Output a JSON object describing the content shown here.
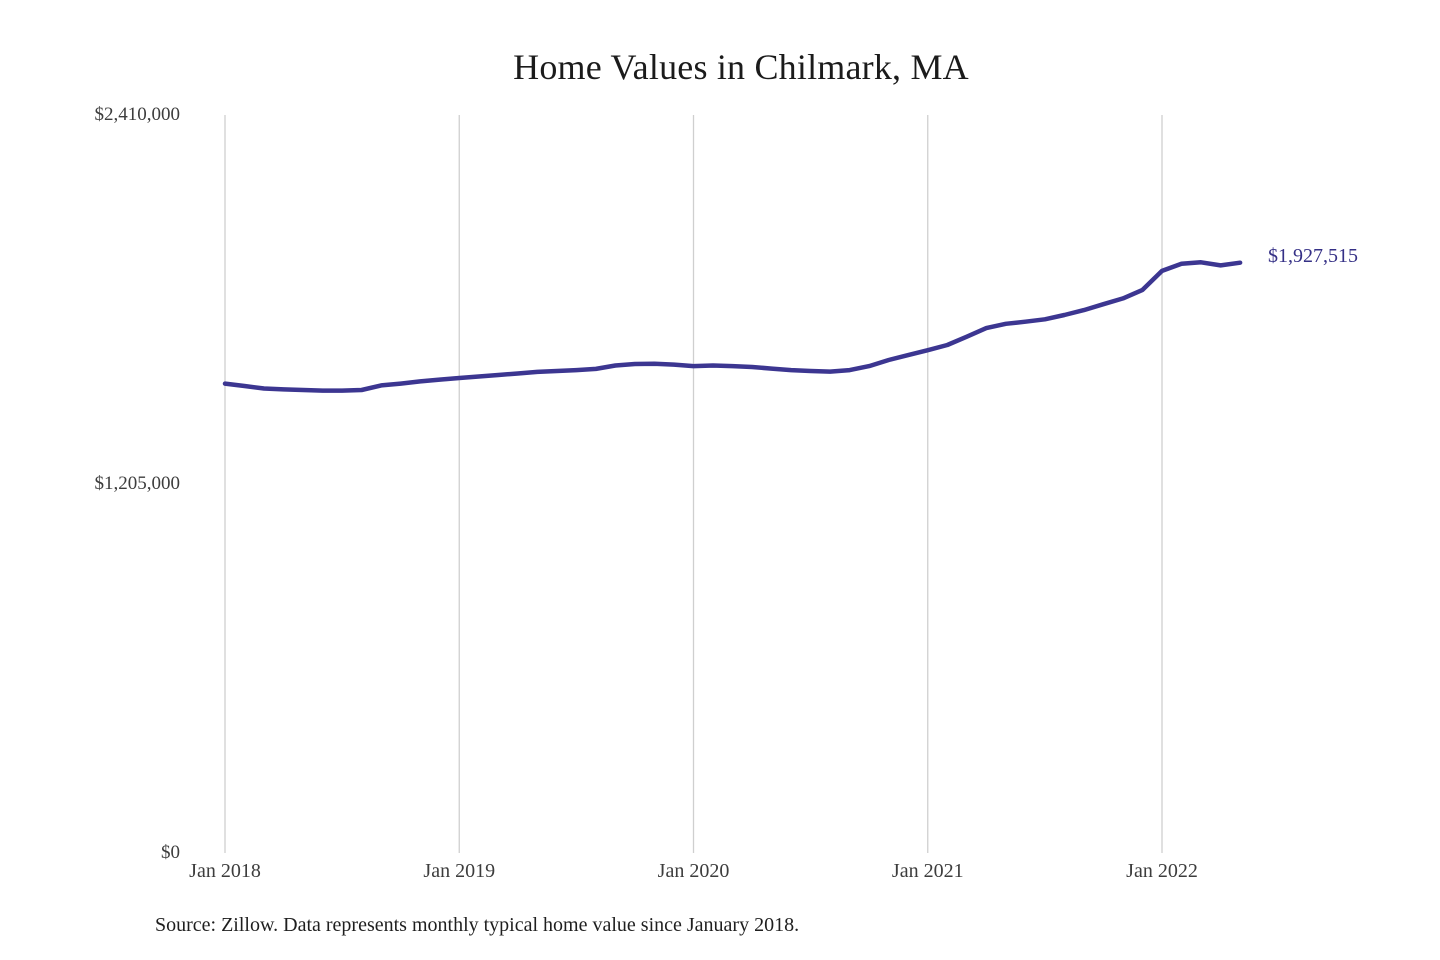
{
  "page": {
    "background_color": "#ffffff"
  },
  "chart_data": {
    "type": "line",
    "title": "Home Values in Chilmark, MA",
    "xlabel": "",
    "ylabel": "",
    "legend": "none",
    "grid": "vertical-only",
    "grid_color": "#cfcfcf",
    "line_color": "#3c3691",
    "end_label_color": "#353086",
    "ylim": [
      0,
      2410000
    ],
    "y_ticks": [
      {
        "label": "$2,410,000",
        "value": 2410000
      },
      {
        "label": "$1,205,000",
        "value": 1205000
      },
      {
        "label": "$0",
        "value": 0
      }
    ],
    "x_tick_labels": [
      "Jan 2018",
      "Jan 2019",
      "Jan 2020",
      "Jan 2021",
      "Jan 2022"
    ],
    "x_tick_month_indices": [
      0,
      12,
      24,
      36,
      48
    ],
    "x": [
      "Jan 2018",
      "Feb 2018",
      "Mar 2018",
      "Apr 2018",
      "May 2018",
      "Jun 2018",
      "Jul 2018",
      "Aug 2018",
      "Sep 2018",
      "Oct 2018",
      "Nov 2018",
      "Dec 2018",
      "Jan 2019",
      "Feb 2019",
      "Mar 2019",
      "Apr 2019",
      "May 2019",
      "Jun 2019",
      "Jul 2019",
      "Aug 2019",
      "Sep 2019",
      "Oct 2019",
      "Nov 2019",
      "Dec 2019",
      "Jan 2020",
      "Feb 2020",
      "Mar 2020",
      "Apr 2020",
      "May 2020",
      "Jun 2020",
      "Jul 2020",
      "Aug 2020",
      "Sep 2020",
      "Oct 2020",
      "Nov 2020",
      "Dec 2020",
      "Jan 2021",
      "Feb 2021",
      "Mar 2021",
      "Apr 2021",
      "May 2021",
      "Jun 2021",
      "Jul 2021",
      "Aug 2021",
      "Sep 2021",
      "Oct 2021",
      "Nov 2021",
      "Dec 2021",
      "Jan 2022",
      "Feb 2022",
      "Mar 2022",
      "Apr 2022",
      "May 2022"
    ],
    "series": [
      {
        "name": "Typical home value",
        "values": [
          1533000,
          1525000,
          1517000,
          1514000,
          1512000,
          1510000,
          1510000,
          1512000,
          1527000,
          1533000,
          1540000,
          1546000,
          1551000,
          1556000,
          1561000,
          1566000,
          1571000,
          1574000,
          1577000,
          1581000,
          1592000,
          1597000,
          1598000,
          1595000,
          1590000,
          1592000,
          1590000,
          1587000,
          1582000,
          1577000,
          1574000,
          1572000,
          1577000,
          1590000,
          1610000,
          1626000,
          1642000,
          1659000,
          1686000,
          1714000,
          1728000,
          1735000,
          1743000,
          1757000,
          1773000,
          1792000,
          1811000,
          1839000,
          1901000,
          1924000,
          1929000,
          1919000,
          1927515
        ]
      }
    ],
    "end_label": "$1,927,515",
    "last_value": 1927515,
    "source_note": "Source: Zillow. Data represents monthly typical home value since January 2018."
  }
}
